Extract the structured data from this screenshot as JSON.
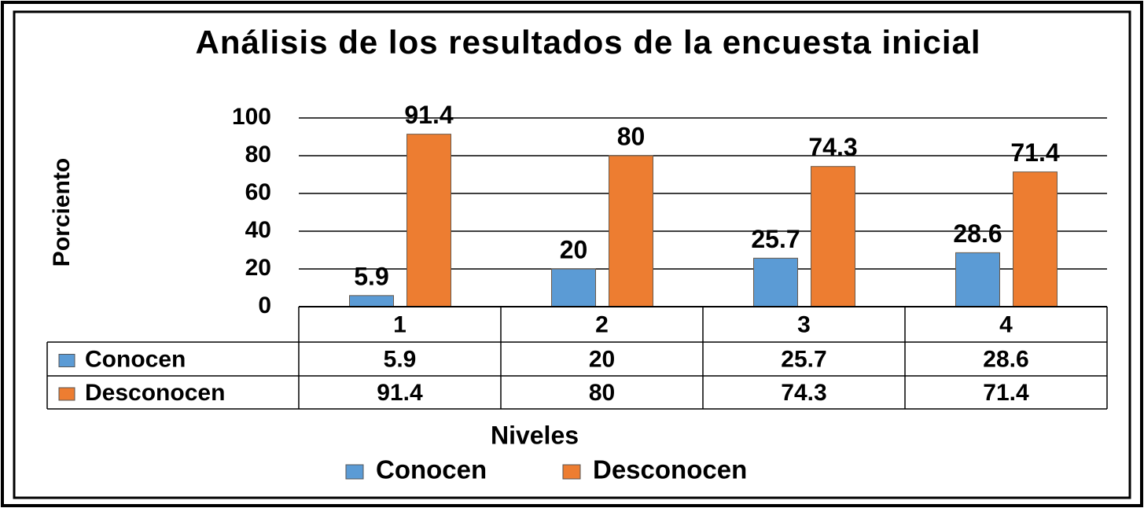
{
  "chart_data": {
    "type": "bar",
    "title": "Análisis de los resultados de la encuesta inicial",
    "y_label": "Porciento",
    "x_label": "Niveles",
    "categories": [
      "1",
      "2",
      "3",
      "4"
    ],
    "series": [
      {
        "name": "Conocen",
        "color": "#5b9bd5",
        "values": [
          5.9,
          20,
          25.7,
          28.6
        ]
      },
      {
        "name": "Desconocen",
        "color": "#ed7d31",
        "values": [
          91.4,
          80,
          74.3,
          71.4
        ]
      }
    ],
    "ylim": [
      0,
      100
    ],
    "yticks": [
      0,
      20,
      40,
      60,
      80,
      100
    ],
    "grid": true,
    "data_table": true,
    "legend": "bottom"
  }
}
